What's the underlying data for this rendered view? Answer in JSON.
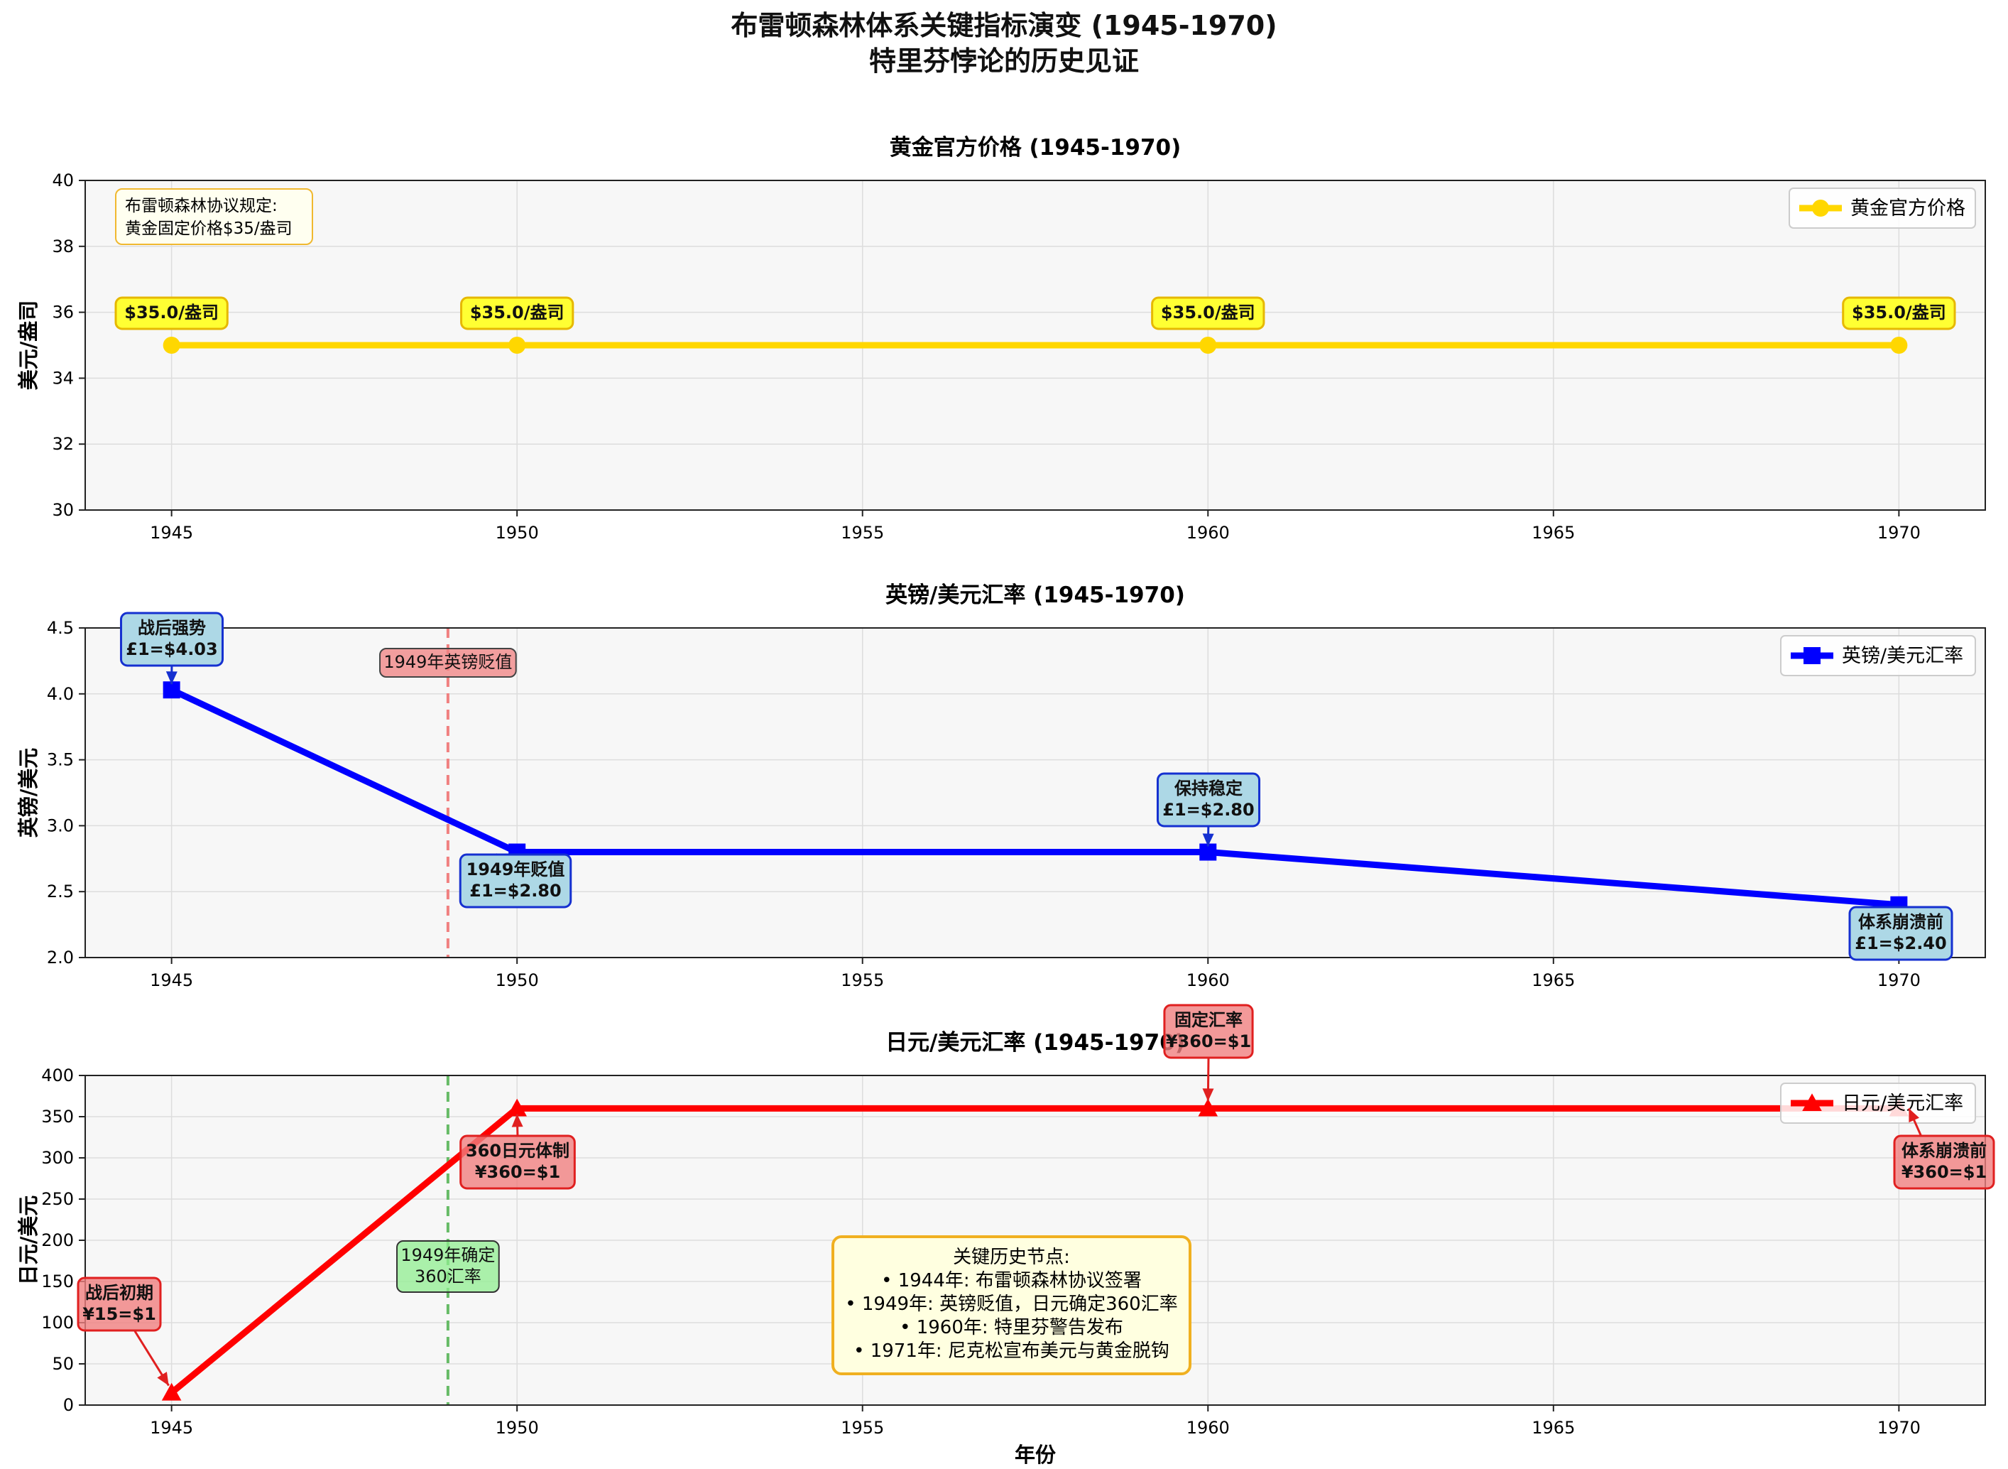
{
  "suptitle": {
    "line1": "布雷顿森林体系关键指标演变 (1945-1970)",
    "line2": "特里芬悖论的历史见证"
  },
  "xlabel": "年份",
  "colors": {
    "gold": "#FFD700",
    "gbp": "#0000FF",
    "jpy": "#FF0000",
    "plot_bg": "#F7F7F7",
    "gold_box": "#FFFF33",
    "blue_box": "#ADD8E6",
    "red_box": "#F08080",
    "green_box": "#90EE90",
    "info_box": "#FFFFE0"
  },
  "chart_data": [
    {
      "type": "line",
      "title": "黄金官方价格 (1945-1970)",
      "xlabel": "",
      "ylabel": "美元/盎司",
      "x": [
        1945,
        1950,
        1960,
        1970
      ],
      "series": [
        {
          "name": "黄金官方价格",
          "values": [
            35.0,
            35.0,
            35.0,
            35.0
          ],
          "color": "#FFD700",
          "marker": "circle"
        }
      ],
      "xlim": [
        1943.75,
        1971.25
      ],
      "ylim": [
        30,
        40
      ],
      "xticks": [
        1945,
        1950,
        1955,
        1960,
        1965,
        1970
      ],
      "yticks": [
        30,
        32,
        34,
        36,
        38,
        40
      ],
      "grid": true,
      "legend": "upper right",
      "point_labels": [
        "$35.0/盎司",
        "$35.0/盎司",
        "$35.0/盎司",
        "$35.0/盎司"
      ],
      "note": {
        "line1": "布雷顿森林协议规定:",
        "line2": "黄金固定价格$35/盎司"
      }
    },
    {
      "type": "line",
      "title": "英镑/美元汇率 (1945-1970)",
      "xlabel": "",
      "ylabel": "英镑/美元",
      "x": [
        1945,
        1950,
        1960,
        1970
      ],
      "series": [
        {
          "name": "英镑/美元汇率",
          "values": [
            4.03,
            2.8,
            2.8,
            2.4
          ],
          "color": "#0000FF",
          "marker": "square"
        }
      ],
      "xlim": [
        1943.75,
        1971.25
      ],
      "ylim": [
        2.0,
        4.5
      ],
      "xticks": [
        1945,
        1950,
        1955,
        1960,
        1965,
        1970
      ],
      "yticks": [
        2.0,
        2.5,
        3.0,
        3.5,
        4.0,
        4.5
      ],
      "grid": true,
      "legend": "upper right",
      "vline": {
        "x": 1949,
        "color": "#F08080",
        "label": "1949年英镑贬值"
      },
      "annotations": [
        {
          "line1": "战后强势",
          "line2": "£1=$4.03"
        },
        {
          "line1": "1949年贬值",
          "line2": "£1=$2.80"
        },
        {
          "line1": "保持稳定",
          "line2": "£1=$2.80"
        },
        {
          "line1": "体系崩溃前",
          "line2": "£1=$2.40"
        }
      ]
    },
    {
      "type": "line",
      "title": "日元/美元汇率 (1945-1970)",
      "xlabel": "年份",
      "ylabel": "日元/美元",
      "x": [
        1945,
        1950,
        1960,
        1970
      ],
      "series": [
        {
          "name": "日元/美元汇率",
          "values": [
            15,
            360,
            360,
            360
          ],
          "color": "#FF0000",
          "marker": "triangle"
        }
      ],
      "xlim": [
        1943.75,
        1971.25
      ],
      "ylim": [
        0,
        400
      ],
      "xticks": [
        1945,
        1950,
        1955,
        1960,
        1965,
        1970
      ],
      "yticks": [
        0,
        50,
        100,
        150,
        200,
        250,
        300,
        350,
        400
      ],
      "grid": true,
      "legend": "upper right",
      "vline": {
        "x": 1949,
        "color": "#66BB66",
        "label_line1": "1949年确定",
        "label_line2": "360汇率"
      },
      "annotations": [
        {
          "line1": "战后初期",
          "line2": "¥15=$1"
        },
        {
          "line1": "360日元体制",
          "line2": "¥360=$1"
        },
        {
          "line1": "固定汇率",
          "line2": "¥360=$1"
        },
        {
          "line1": "体系崩溃前",
          "line2": "¥360=$1"
        }
      ],
      "info_box": [
        "关键历史节点:",
        "• 1944年: 布雷顿森林协议签署",
        "• 1949年: 英镑贬值，日元确定360汇率",
        "• 1960年: 特里芬警告发布",
        "• 1971年: 尼克松宣布美元与黄金脱钩"
      ]
    }
  ]
}
